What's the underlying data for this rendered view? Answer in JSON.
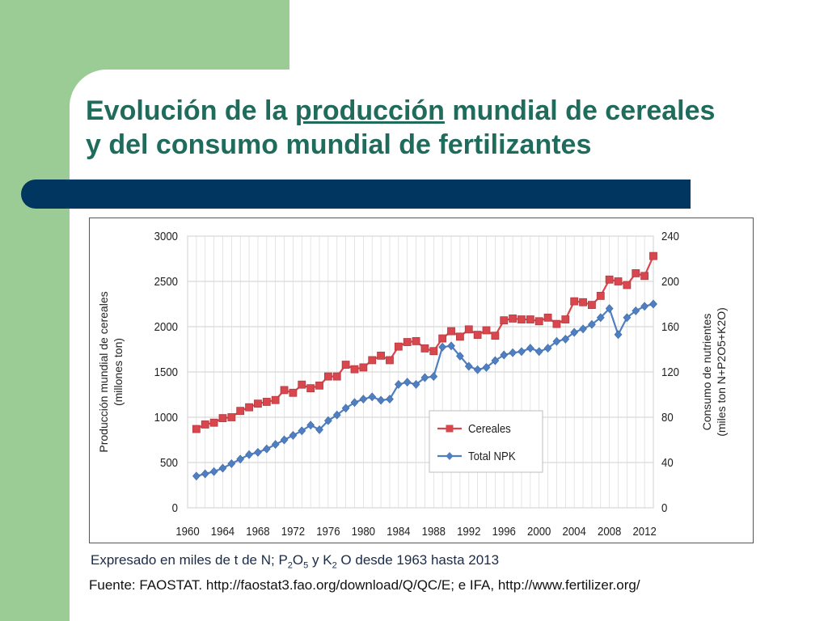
{
  "slide": {
    "title_part1": "Evolución de la ",
    "title_highlight": "producción",
    "title_part2": " mundial de cereales",
    "title_line2": "y del consumo mundial de fertilizantes",
    "caption_prefix": "Expresado en miles de t de N; P",
    "caption_sub1": "2",
    "caption_mid1": "O",
    "caption_sub2": "5",
    "caption_mid2": " y K",
    "caption_sub3": "2",
    "caption_suffix": " O desde 1963 hasta 2013",
    "source": "Fuente: FAOSTAT. http://faostat3.fao.org/download/Q/QC/E; e IFA, http://www.fertilizer.org/",
    "colors": {
      "green": "#9ccc96",
      "title": "#1f6b5c",
      "bar": "#00365f"
    }
  },
  "chart_data": {
    "type": "line",
    "xlabel": "",
    "ylabel": "Producción mundial de cereales (millones ton)",
    "ylabel_right": "Consumo de nutrientes (miles ton N+P2O5+K2O)",
    "ylim": [
      0,
      3000
    ],
    "ylim_right": [
      0,
      240
    ],
    "yticks": [
      "0",
      "500",
      "1000",
      "1500",
      "2000",
      "2500",
      "3000"
    ],
    "yticks_right": [
      "0",
      "40",
      "80",
      "120",
      "160",
      "200",
      "240"
    ],
    "xticks": [
      "1960",
      "1964",
      "1968",
      "1972",
      "1976",
      "1980",
      "1984",
      "1988",
      "1992",
      "1996",
      "2000",
      "2004",
      "2008",
      "2012"
    ],
    "xlim": [
      1960,
      2013
    ],
    "grid": true,
    "legend_position": "lower-right",
    "series": [
      {
        "name": "Cereales",
        "axis": "left",
        "color": "#d9474e",
        "marker": "square",
        "x": [
          1961,
          1962,
          1963,
          1964,
          1965,
          1966,
          1967,
          1968,
          1969,
          1970,
          1971,
          1972,
          1973,
          1974,
          1975,
          1976,
          1977,
          1978,
          1979,
          1980,
          1981,
          1982,
          1983,
          1984,
          1985,
          1986,
          1987,
          1988,
          1989,
          1990,
          1991,
          1992,
          1993,
          1994,
          1995,
          1996,
          1997,
          1998,
          1999,
          2000,
          2001,
          2002,
          2003,
          2004,
          2005,
          2006,
          2007,
          2008,
          2009,
          2010,
          2011,
          2012,
          2013
        ],
        "values": [
          870,
          920,
          940,
          990,
          1000,
          1070,
          1110,
          1150,
          1170,
          1190,
          1300,
          1270,
          1360,
          1320,
          1350,
          1450,
          1450,
          1580,
          1530,
          1550,
          1630,
          1680,
          1630,
          1780,
          1830,
          1840,
          1760,
          1730,
          1870,
          1950,
          1890,
          1970,
          1910,
          1960,
          1900,
          2070,
          2090,
          2080,
          2080,
          2060,
          2100,
          2030,
          2080,
          2280,
          2270,
          2240,
          2340,
          2520,
          2500,
          2460,
          2590,
          2560,
          2780
        ]
      },
      {
        "name": "Total NPK",
        "axis": "right",
        "color": "#4f7fc0",
        "marker": "diamond",
        "x": [
          1961,
          1962,
          1963,
          1964,
          1965,
          1966,
          1967,
          1968,
          1969,
          1970,
          1971,
          1972,
          1973,
          1974,
          1975,
          1976,
          1977,
          1978,
          1979,
          1980,
          1981,
          1982,
          1983,
          1984,
          1985,
          1986,
          1987,
          1988,
          1989,
          1990,
          1991,
          1992,
          1993,
          1994,
          1995,
          1996,
          1997,
          1998,
          1999,
          2000,
          2001,
          2002,
          2003,
          2004,
          2005,
          2006,
          2007,
          2008,
          2009,
          2010,
          2011,
          2012,
          2013
        ],
        "values": [
          28,
          30,
          32,
          35,
          39,
          43,
          47,
          49,
          52,
          56,
          60,
          64,
          68,
          73,
          69,
          77,
          82,
          88,
          93,
          96,
          98,
          95,
          96,
          109,
          111,
          109,
          115,
          116,
          142,
          143,
          134,
          125,
          122,
          124,
          130,
          135,
          137,
          138,
          141,
          138,
          141,
          147,
          149,
          155,
          158,
          162,
          168,
          176,
          153,
          168,
          174,
          178,
          180
        ]
      }
    ]
  }
}
